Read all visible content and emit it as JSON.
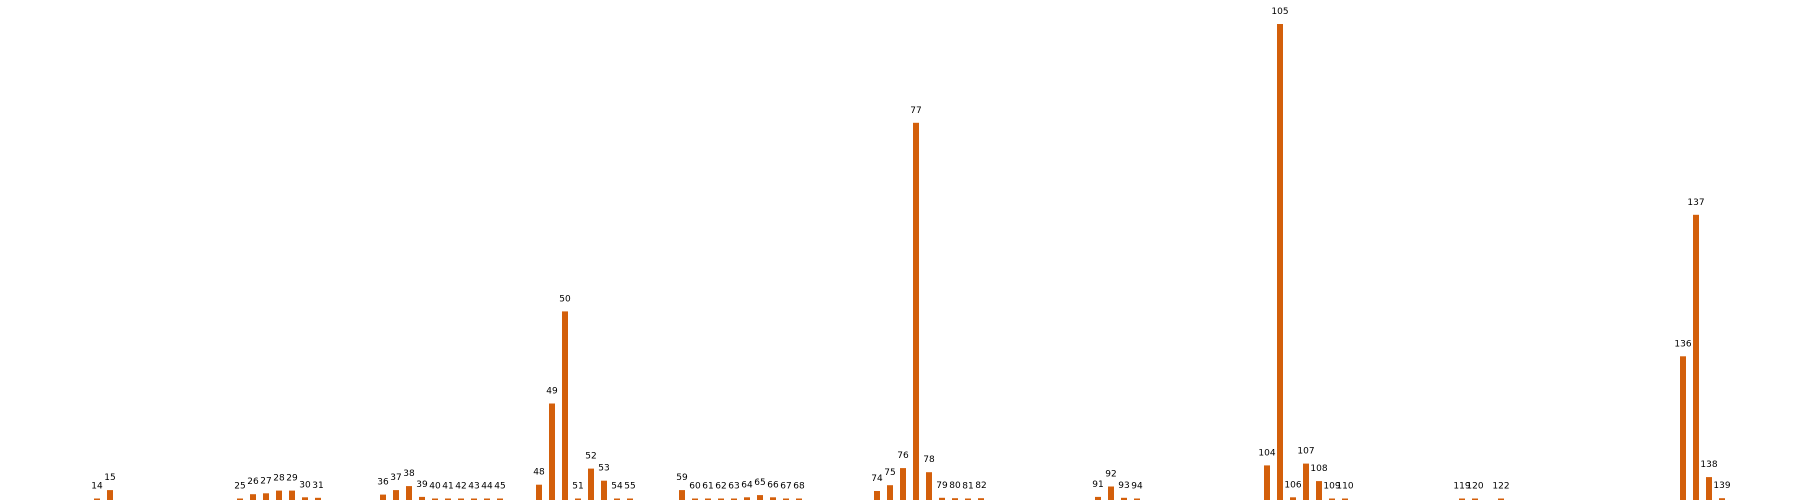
{
  "chart_data": {
    "type": "bar",
    "title": "",
    "xlabel": "",
    "ylabel": "",
    "ylim": [
      0,
      106
    ],
    "grid": false,
    "legend": "none",
    "bar_color": "#d35f0b",
    "categories": [
      "14",
      "15",
      "25",
      "26",
      "27",
      "28",
      "29",
      "30",
      "31",
      "36",
      "37",
      "38",
      "39",
      "40",
      "41",
      "42",
      "43",
      "44",
      "45",
      "48",
      "49",
      "50",
      "51",
      "52",
      "53",
      "54",
      "55",
      "59",
      "60",
      "61",
      "62",
      "63",
      "64",
      "65",
      "66",
      "67",
      "68",
      "74",
      "75",
      "76",
      "77",
      "78",
      "79",
      "80",
      "81",
      "82",
      "91",
      "92",
      "93",
      "94",
      "104",
      "105",
      "107",
      "106",
      "108",
      "109",
      "110",
      "119",
      "120",
      "122",
      "136",
      "137",
      "138",
      "139"
    ],
    "values": [
      0,
      2.2,
      0.3,
      1.3,
      1.5,
      2.1,
      2.1,
      0.6,
      0.5,
      1.2,
      2.2,
      3.1,
      0.7,
      0.3,
      0.2,
      0.1,
      0.3,
      0.3,
      0.3,
      3.4,
      21.5,
      42,
      0.3,
      7,
      4.3,
      0.2,
      0.1,
      2.2,
      0.3,
      0.3,
      0.3,
      0.3,
      0.6,
      1.1,
      0.6,
      0.2,
      0.2,
      2,
      3.3,
      7.1,
      84,
      6.2,
      0.5,
      0.4,
      0.1,
      0.4,
      0.7,
      3,
      0.5,
      0.3,
      7.7,
      106,
      8.1,
      0.6,
      4.2,
      0.3,
      0.2,
      0.3,
      0.2,
      0.1,
      32,
      63.5,
      5.1,
      0.4
    ]
  }
}
